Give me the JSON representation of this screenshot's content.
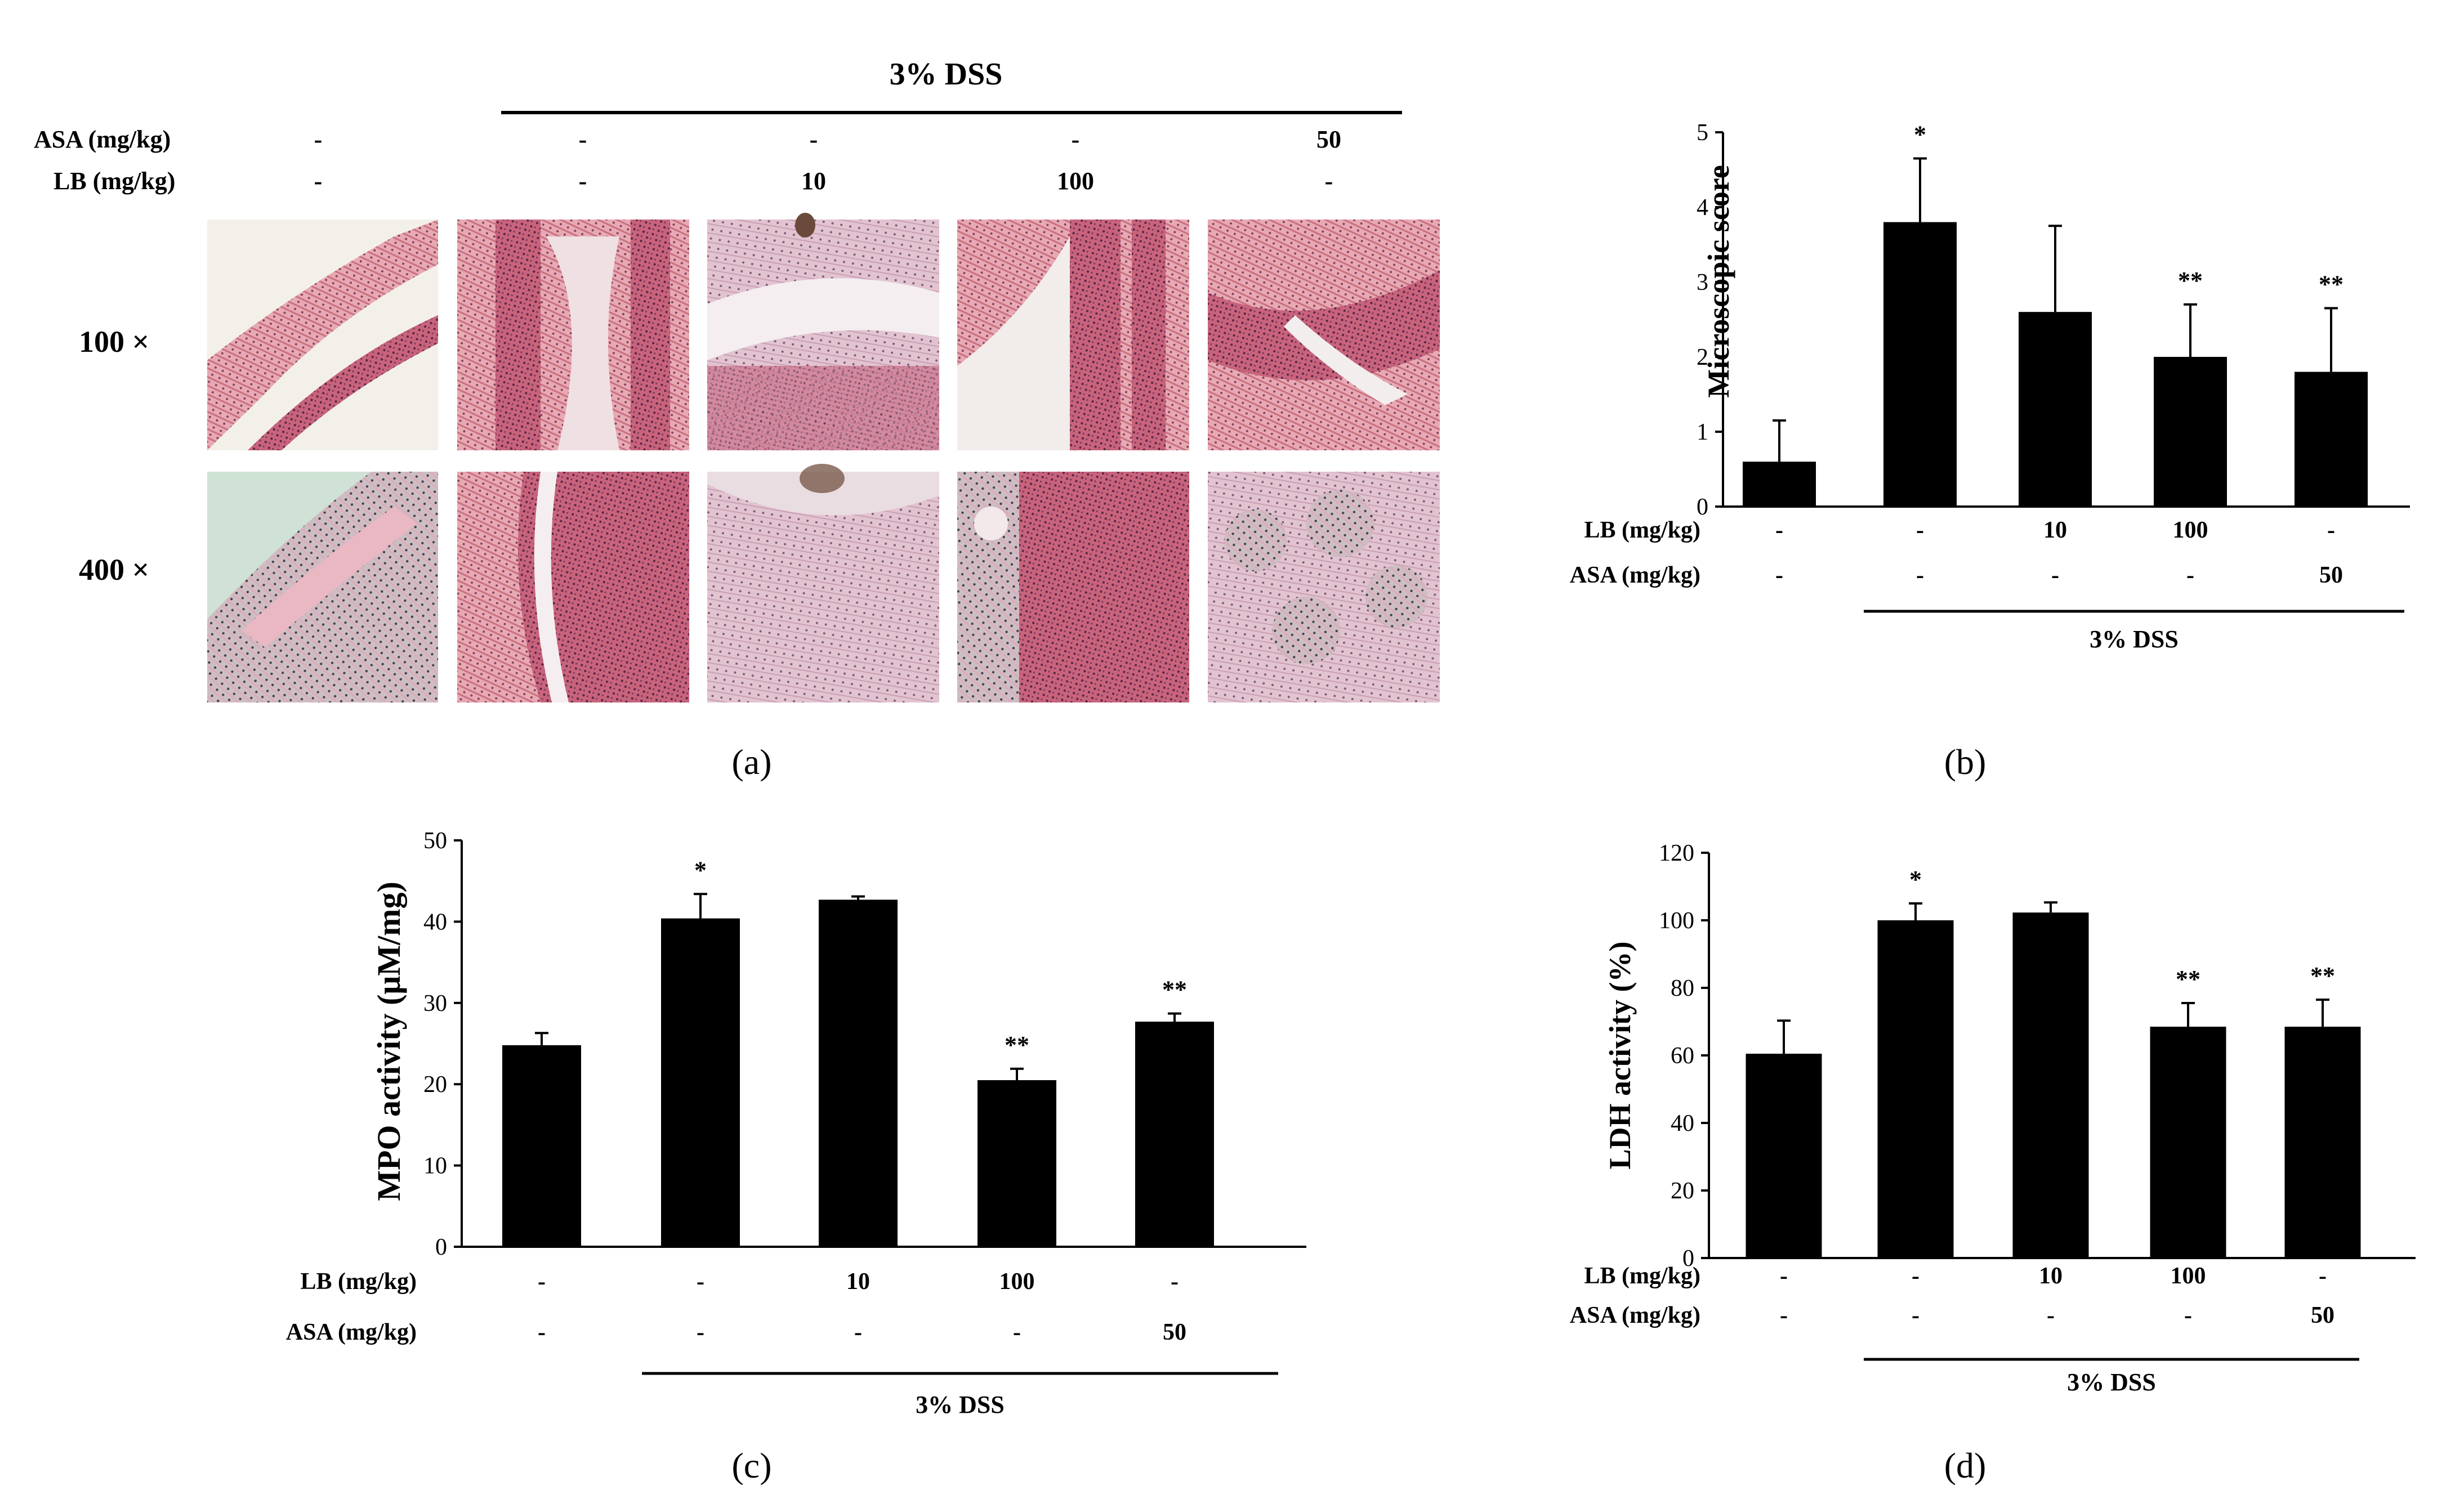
{
  "figure": {
    "colors": {
      "bar": "#000000",
      "axis": "#000000",
      "background": "#ffffff"
    }
  },
  "panel_a": {
    "caption": "(a)",
    "condition": "3% DSS",
    "rows": [
      {
        "label": "ASA (mg/kg)",
        "values": [
          "-",
          "-",
          "-",
          "-",
          "50"
        ]
      },
      {
        "label": "LB (mg/kg)",
        "values": [
          "-",
          "-",
          "10",
          "100",
          "-"
        ]
      }
    ],
    "magnifications": [
      "100 ×",
      "400 ×"
    ],
    "image_description_note_hidden": ""
  },
  "chart_data": [
    {
      "panel": "b",
      "caption": "(b)",
      "type": "bar",
      "ylabel": "Microscopic score",
      "ylim": [
        0,
        5
      ],
      "yticks": [
        "0",
        "1",
        "2",
        "3",
        "4",
        "5"
      ],
      "values": [
        0.6,
        3.8,
        2.6,
        2.0,
        1.8
      ],
      "errors": [
        0.55,
        0.85,
        1.15,
        0.7,
        0.85
      ],
      "significance": [
        "",
        "*",
        "",
        "**",
        "**"
      ],
      "treatments": [
        {
          "label": "LB (mg/kg)",
          "values": [
            "-",
            "-",
            "10",
            "100",
            "-"
          ]
        },
        {
          "label": "ASA (mg/kg)",
          "values": [
            "-",
            "-",
            "-",
            "-",
            "50"
          ]
        }
      ],
      "condition": "3% DSS"
    },
    {
      "panel": "c",
      "caption": "(c)",
      "type": "bar",
      "ylabel": "MPO activity (μM/mg)",
      "ylim": [
        0,
        50
      ],
      "yticks": [
        "0",
        "10",
        "20",
        "30",
        "40",
        "50"
      ],
      "values": [
        24.8,
        40.4,
        42.7,
        20.5,
        27.7
      ],
      "errors": [
        1.5,
        3.0,
        0.4,
        1.4,
        1.0
      ],
      "significance": [
        "",
        "*",
        "",
        "**",
        "**"
      ],
      "treatments": [
        {
          "label": "LB (mg/kg)",
          "values": [
            "-",
            "-",
            "10",
            "100",
            "-"
          ]
        },
        {
          "label": "ASA (mg/kg)",
          "values": [
            "-",
            "-",
            "-",
            "-",
            "50"
          ]
        }
      ],
      "condition": "3% DSS"
    },
    {
      "panel": "d",
      "caption": "(d)",
      "type": "bar",
      "ylabel": "LDH activity (%)",
      "ylim": [
        0,
        120
      ],
      "yticks": [
        "0",
        "20",
        "40",
        "60",
        "80",
        "100",
        "120"
      ],
      "values": [
        60.5,
        100.0,
        102.3,
        68.5,
        68.5
      ],
      "errors": [
        9.8,
        5.0,
        3.0,
        7.0,
        8.0
      ],
      "significance": [
        "",
        "*",
        "",
        "**",
        "**"
      ],
      "treatments": [
        {
          "label": "LB (mg/kg)",
          "values": [
            "-",
            "-",
            "10",
            "100",
            "-"
          ]
        },
        {
          "label": "ASA (mg/kg)",
          "values": [
            "-",
            "-",
            "-",
            "-",
            "50"
          ]
        }
      ],
      "condition": "3% DSS"
    }
  ]
}
